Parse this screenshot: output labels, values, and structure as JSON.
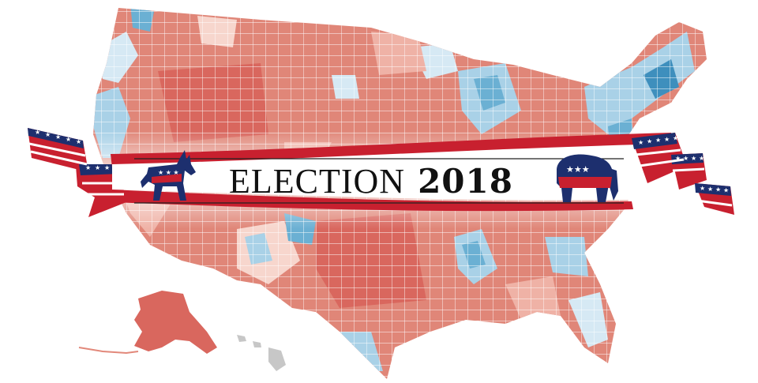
{
  "banner": {
    "title_word": "ELECTION",
    "title_year": "2018"
  },
  "map": {
    "subject": "US county-level choropleth",
    "palette": {
      "strong_red": "#d9675e",
      "red": "#e08678",
      "light_red": "#efb2a6",
      "pale_red": "#f7d6cd",
      "pale_blue": "#d6e9f4",
      "light_blue": "#a9d1e7",
      "blue": "#6bb0d3",
      "strong_blue": "#3e8fbd",
      "no_data": "#c7c7c7"
    }
  },
  "ribbon": {
    "red": "#c8202f",
    "navy": "#1d2f6e",
    "white": "#ffffff"
  },
  "icons": [
    "donkey-icon",
    "elephant-icon",
    "star-icon"
  ]
}
